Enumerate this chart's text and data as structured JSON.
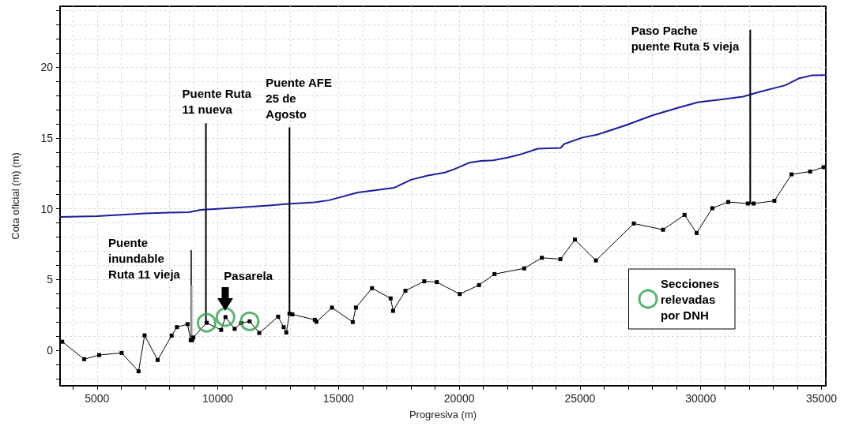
{
  "chart_data": {
    "type": "line",
    "xlabel": "Progresiva (m)",
    "ylabel": "Cota oficial (m) (m)",
    "xlim": [
      3470,
      35180
    ],
    "ylim": [
      -2.5,
      24.3
    ],
    "xticks": [
      {
        "value": 4000,
        "label": null
      },
      5000,
      {
        "value": 6000,
        "label": null
      },
      {
        "value": 7000,
        "label": null
      },
      {
        "value": 8000,
        "label": null
      },
      {
        "value": 9000,
        "label": null
      },
      10000,
      {
        "value": 11000,
        "label": null
      },
      {
        "value": 12000,
        "label": null
      },
      {
        "value": 13000,
        "label": null
      },
      {
        "value": 14000,
        "label": null
      },
      15000,
      {
        "value": 16000,
        "label": null
      },
      {
        "value": 17000,
        "label": null
      },
      {
        "value": 18000,
        "label": null
      },
      {
        "value": 19000,
        "label": null
      },
      20000,
      {
        "value": 21000,
        "label": null
      },
      {
        "value": 22000,
        "label": null
      },
      {
        "value": 23000,
        "label": null
      },
      {
        "value": 24000,
        "label": null
      },
      25000,
      {
        "value": 26000,
        "label": null
      },
      {
        "value": 27000,
        "label": null
      },
      {
        "value": 28000,
        "label": null
      },
      {
        "value": 29000,
        "label": null
      },
      30000,
      {
        "value": 31000,
        "label": null
      },
      {
        "value": 32000,
        "label": null
      },
      {
        "value": 33000,
        "label": null
      },
      {
        "value": 34000,
        "label": null
      },
      35000
    ],
    "yticks": [
      {
        "value": -2,
        "label": null
      },
      {
        "value": -1,
        "label": null
      },
      0,
      {
        "value": 1,
        "label": null
      },
      {
        "value": 2,
        "label": null
      },
      {
        "value": 3,
        "label": null
      },
      {
        "value": 4,
        "label": null
      },
      5,
      {
        "value": 6,
        "label": null
      },
      {
        "value": 7,
        "label": null
      },
      {
        "value": 8,
        "label": null
      },
      {
        "value": 9,
        "label": null
      },
      10,
      {
        "value": 11,
        "label": null
      },
      {
        "value": 12,
        "label": null
      },
      {
        "value": 13,
        "label": null
      },
      {
        "value": 14,
        "label": null
      },
      15,
      {
        "value": 16,
        "label": null
      },
      {
        "value": 17,
        "label": null
      },
      {
        "value": 18,
        "label": null
      },
      {
        "value": 19,
        "label": null
      },
      20,
      {
        "value": 21,
        "label": null
      },
      {
        "value": 22,
        "label": null
      },
      {
        "value": 23,
        "label": null
      },
      {
        "value": 24,
        "label": null
      }
    ],
    "grid": true,
    "legend": "right",
    "series": [
      {
        "color": "#1c1ca0",
        "marker": "none",
        "x": [
          3470,
          5000,
          6000,
          7000,
          8000,
          8800,
          9300,
          10000,
          11000,
          12000,
          13000,
          14000,
          14600,
          15000,
          15800,
          16500,
          17300,
          18000,
          18700,
          19400,
          19800,
          20400,
          20900,
          21400,
          22000,
          22500,
          23250,
          24200,
          24350,
          25100,
          25700,
          26900,
          28000,
          29100,
          29900,
          30750,
          31750,
          32400,
          33500,
          34050,
          34600,
          35150
        ],
        "values": [
          9.42,
          9.48,
          9.58,
          9.68,
          9.73,
          9.76,
          9.93,
          10.0,
          10.1,
          10.22,
          10.36,
          10.45,
          10.6,
          10.78,
          11.15,
          11.3,
          11.48,
          12.05,
          12.35,
          12.56,
          12.8,
          13.25,
          13.38,
          13.42,
          13.62,
          13.82,
          14.24,
          14.3,
          14.58,
          15.03,
          15.23,
          15.9,
          16.6,
          17.15,
          17.53,
          17.7,
          17.92,
          18.24,
          18.72,
          19.2,
          19.42,
          19.44
        ]
      },
      {
        "color": "#000000",
        "marker": "square",
        "x": [
          3560,
          4470,
          5090,
          6020,
          6720,
          6970,
          7510,
          8090,
          8310,
          8750,
          8880,
          8940,
          8990,
          9540,
          10140,
          10320,
          10700,
          10970,
          11320,
          11720,
          12500,
          12730,
          12840,
          12970,
          13090,
          14020,
          14090,
          14730,
          15590,
          15720,
          16390,
          17160,
          17260,
          17770,
          18550,
          19070,
          20020,
          20820,
          21460,
          22690,
          23420,
          24190,
          24790,
          25660,
          27230,
          28440,
          29330,
          29830,
          30480,
          31140,
          31950,
          32190,
          33050,
          33760,
          34530,
          35090
        ],
        "values": [
          0.61,
          -0.62,
          -0.33,
          -0.18,
          -1.48,
          1.06,
          -0.68,
          1.04,
          1.64,
          1.85,
          0.72,
          0.72,
          0.91,
          1.95,
          1.44,
          2.35,
          1.52,
          1.93,
          2.05,
          1.23,
          2.38,
          1.64,
          1.26,
          2.6,
          2.54,
          2.16,
          2.02,
          3.02,
          2.0,
          3.02,
          4.39,
          3.67,
          2.79,
          4.21,
          4.88,
          4.82,
          3.98,
          4.61,
          5.39,
          5.79,
          6.54,
          6.44,
          7.82,
          6.35,
          8.96,
          8.52,
          9.57,
          8.29,
          10.04,
          10.48,
          10.37,
          10.37,
          10.56,
          12.43,
          12.63,
          12.94
        ]
      },
      {
        "name": "Puente\ninundable\nRuta 11 vieja",
        "color": "#3a3a3a",
        "marker": "none",
        "x": [
          8900,
          8900
        ],
        "values": [
          0.72,
          7.04
        ]
      },
      {
        "color": "#9a9a9a",
        "marker": "none",
        "x": [
          8920,
          8920
        ],
        "values": [
          0.72,
          4.55
        ]
      },
      {
        "name": "Puente Ruta\n11 nueva",
        "color": "#000000",
        "marker": "none",
        "x": [
          9510,
          9510
        ],
        "values": [
          1.9,
          16.0
        ]
      },
      {
        "name": "Puente AFE\n25 de\nAgosto",
        "color": "#000000",
        "marker": "none",
        "x": [
          12970,
          12970
        ],
        "values": [
          2.6,
          15.7
        ]
      },
      {
        "name": "Paso Pache\npuente Ruta 5 vieja",
        "color": "#000000",
        "marker": "none",
        "x": [
          32050,
          32050
        ],
        "values": [
          10.37,
          22.6
        ]
      },
      {
        "type": "scatter",
        "name": "Secciones relevadas por DNH",
        "color": "#2ea44f",
        "marker": "circle",
        "x": [
          9540,
          10320,
          11320
        ],
        "values": [
          1.95,
          2.35,
          2.05
        ]
      }
    ],
    "annotations": [
      {
        "text": "Pasarela",
        "x": 10320,
        "y": 2.35
      }
    ]
  }
}
